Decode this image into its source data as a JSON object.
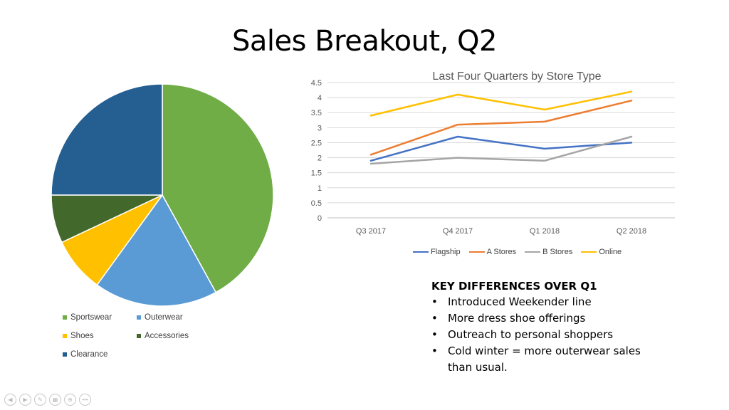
{
  "slide": {
    "title": "Sales Breakout, Q2"
  },
  "chart_data": [
    {
      "type": "pie",
      "title": "",
      "categories": [
        "Sportswear",
        "Outerwear",
        "Shoes",
        "Accessories",
        "Clearance"
      ],
      "values": [
        42,
        18,
        8,
        7,
        25
      ],
      "colors": [
        "#70ad47",
        "#5b9bd5",
        "#ffc000",
        "#43682b",
        "#255e91"
      ],
      "legend_position": "bottom"
    },
    {
      "type": "line",
      "title": "Last Four Quarters by Store Type",
      "categories": [
        "Q3 2017",
        "Q4 2017",
        "Q1 2018",
        "Q2 2018"
      ],
      "yticks": [
        "0",
        "0.5",
        "1",
        "1.5",
        "2",
        "2.5",
        "3",
        "3.5",
        "4",
        "4.5"
      ],
      "ylim": [
        0,
        4.5
      ],
      "grid": true,
      "legend_position": "bottom",
      "series": [
        {
          "name": "Flagship",
          "values": [
            1.9,
            2.7,
            2.3,
            2.5
          ],
          "color": "#4472c4"
        },
        {
          "name": "A Stores",
          "values": [
            2.1,
            3.1,
            3.2,
            3.9
          ],
          "color": "#ed7d31"
        },
        {
          "name": "B Stores",
          "values": [
            1.8,
            2.0,
            1.9,
            2.7
          ],
          "color": "#a5a5a5"
        },
        {
          "name": "Online",
          "values": [
            3.4,
            4.1,
            3.6,
            4.2
          ],
          "color": "#ffc000"
        }
      ]
    }
  ],
  "key_differences": {
    "title": "KEY DIFFERENCES OVER Q1",
    "bullet": "•",
    "items": [
      "Introduced Weekender line",
      "More dress shoe offerings",
      "Outreach to personal shoppers",
      "Cold winter = more outerwear sales than usual."
    ]
  },
  "slide_controls": {
    "icons": [
      "previous-icon",
      "next-icon",
      "pen-icon",
      "slides-icon",
      "zoom-icon",
      "more-icon"
    ],
    "glyphs": [
      "◀",
      "▶",
      "✎",
      "▦",
      "⊕",
      "•••"
    ]
  }
}
